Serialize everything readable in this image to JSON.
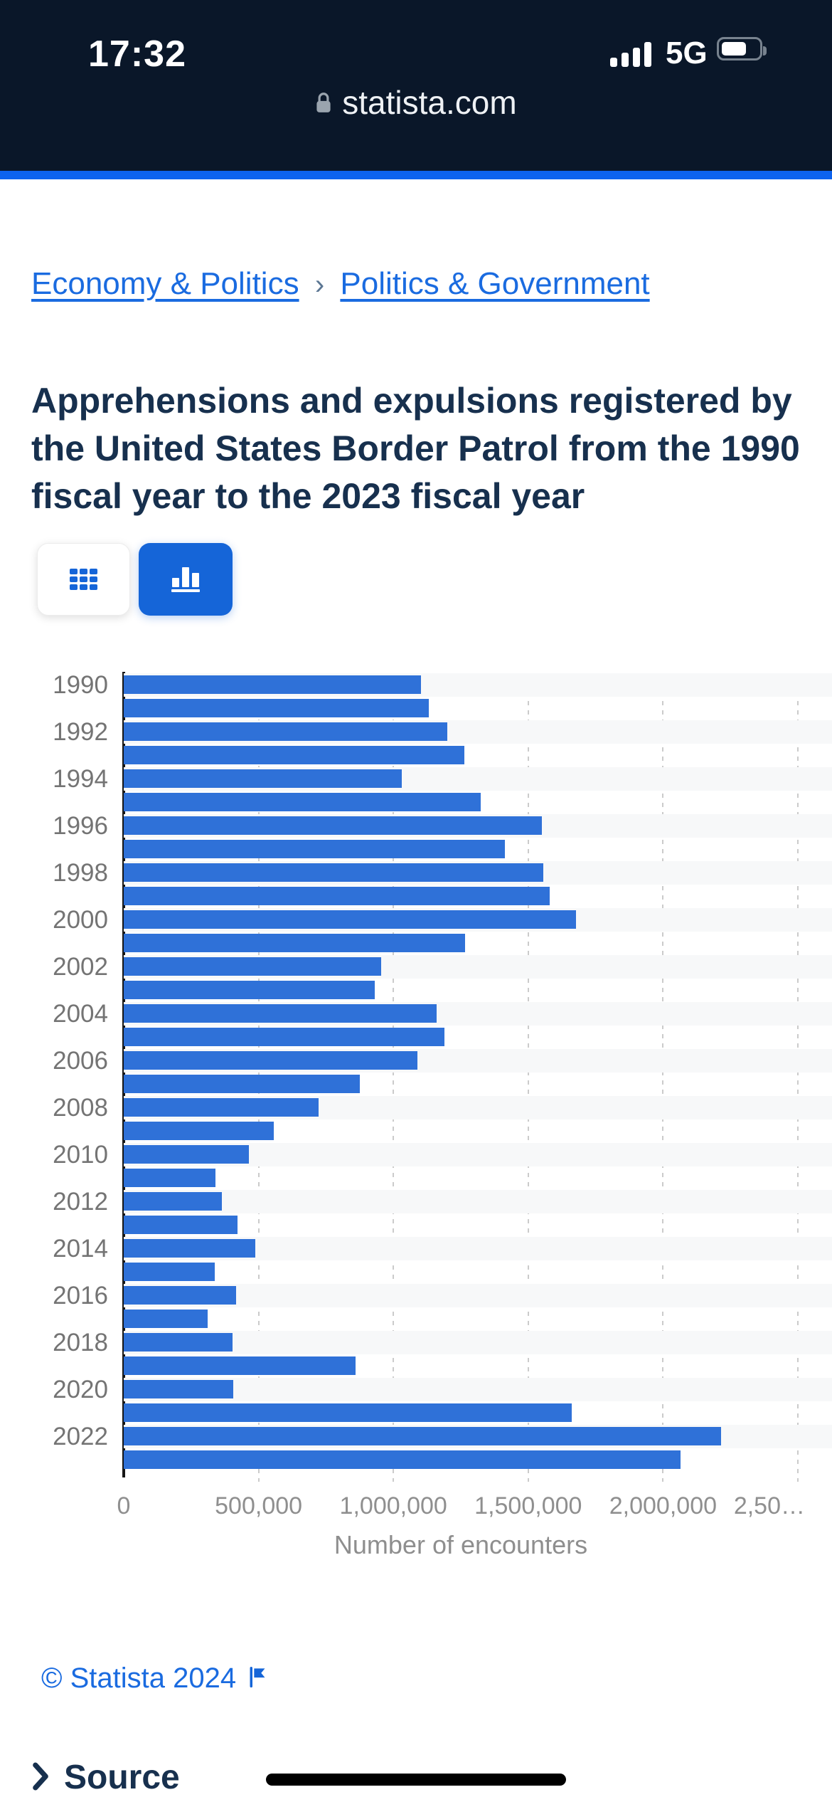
{
  "status_bar": {
    "time": "17:32",
    "network": "5G",
    "signal_bars": 4,
    "battery_percent": 60,
    "url": "statista.com"
  },
  "accent_color": "#0d63ee",
  "breadcrumb": {
    "links": [
      {
        "label": "Economy & Politics"
      },
      {
        "label": "Politics & Government"
      }
    ],
    "separator": "›"
  },
  "page": {
    "title": "Apprehensions and expulsions registered by the United States Border Patrol from the 1990 fiscal year to the 2023 fiscal year"
  },
  "toolbar": {
    "buttons": [
      {
        "name": "table-view",
        "icon": "grid-icon",
        "active": false
      },
      {
        "name": "chart-view",
        "icon": "bar-chart-icon",
        "active": true
      }
    ]
  },
  "chart_data": {
    "type": "bar",
    "orientation": "horizontal",
    "title": "Apprehensions and expulsions registered by the United States Border Patrol from the 1990 fiscal year to the 2023 fiscal year",
    "categories": [
      1990,
      1991,
      1992,
      1993,
      1994,
      1995,
      1996,
      1997,
      1998,
      1999,
      2000,
      2001,
      2002,
      2003,
      2004,
      2005,
      2006,
      2007,
      2008,
      2009,
      2010,
      2011,
      2012,
      2013,
      2014,
      2015,
      2016,
      2017,
      2018,
      2019,
      2020,
      2021,
      2022,
      2023
    ],
    "values": [
      1103353,
      1132033,
      1199560,
      1263490,
      1031668,
      1324202,
      1549876,
      1412953,
      1555776,
      1579010,
      1676438,
      1266214,
      955310,
      931557,
      1160395,
      1189075,
      1089092,
      876704,
      723825,
      556041,
      463382,
      340252,
      364768,
      420789,
      486651,
      337117,
      415816,
      310531,
      404142,
      859501,
      405036,
      1662167,
      2214652,
      2063692
    ],
    "visible_category_labels": [
      "1990",
      "1992",
      "1994",
      "1996",
      "1998",
      "2000",
      "2002",
      "2004",
      "2006",
      "2008",
      "2010",
      "2012",
      "2014",
      "2016",
      "2018",
      "2020",
      "2022"
    ],
    "xlabel": "Number of encounters",
    "xlim": [
      0,
      2500000
    ],
    "xtick_labels": [
      "0",
      "500,000",
      "1,000,000",
      "1,500,000",
      "2,000,000",
      "2,50…"
    ],
    "bar_color": "#2f71d8",
    "grid": "vertical-dashed",
    "row_stripe_color": "#f7f8f9",
    "legend": null
  },
  "footer": {
    "copyright": "© Statista 2024",
    "chevron": "❯",
    "source_label": "Source"
  }
}
